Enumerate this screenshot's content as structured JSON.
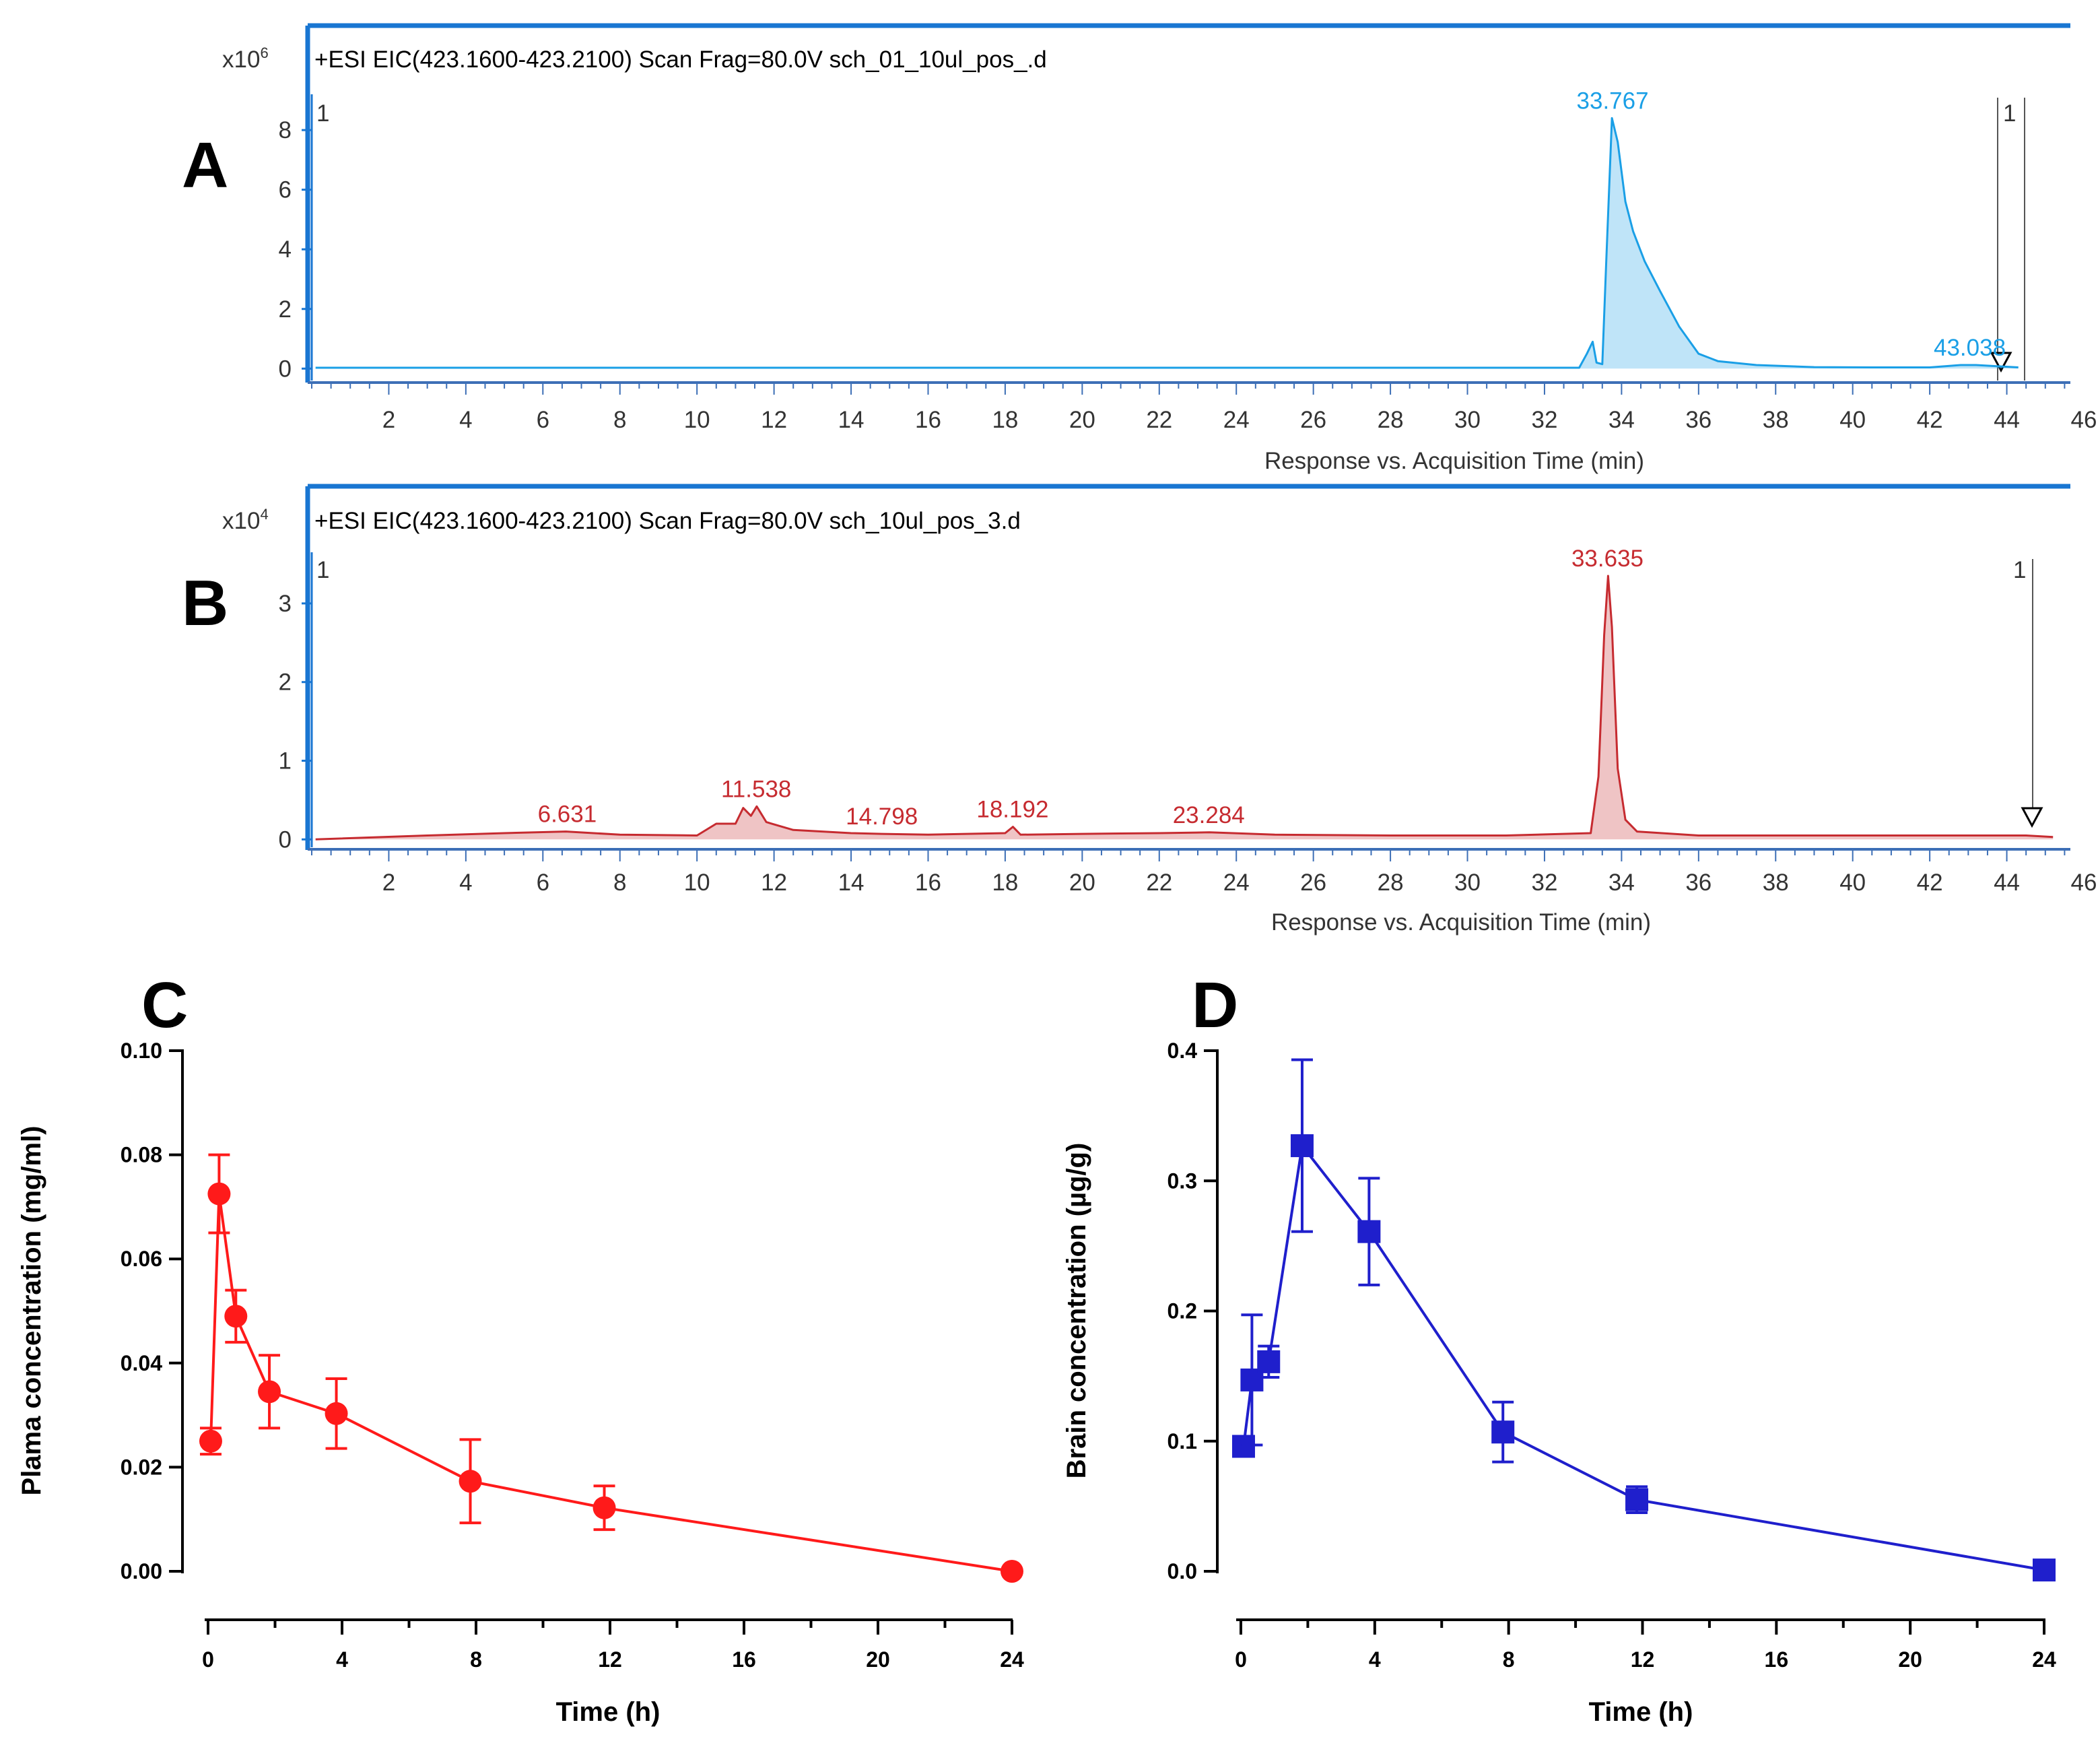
{
  "panels": {
    "A": {
      "label": "A"
    },
    "B": {
      "label": "B"
    },
    "C": {
      "label": "C"
    },
    "D": {
      "label": "D"
    }
  },
  "chart_data": [
    {
      "id": "A",
      "type": "line",
      "fill": true,
      "title": "+ESI EIC(423.1600-423.2100) Scan Frag=80.0V sch_01_10ul_pos_.d",
      "yscale_label": "x10",
      "yscale_exp": "6",
      "xlabel": "Response vs. Acquisition Time (min)",
      "xlim": [
        0,
        46
      ],
      "ylim": [
        -0.4,
        9.2
      ],
      "xticks": [
        2,
        4,
        6,
        8,
        10,
        12,
        14,
        16,
        18,
        20,
        22,
        24,
        26,
        28,
        30,
        32,
        34,
        36,
        38,
        40,
        42,
        44,
        46
      ],
      "yticks": [
        0,
        2,
        4,
        6,
        8
      ],
      "color": "#1a9fe6",
      "marker_text": "1",
      "series": [
        {
          "name": "EIC 423.16-423.21",
          "x": [
            0.1,
            32.9,
            33.1,
            33.25,
            33.35,
            33.5,
            33.6,
            33.75,
            33.9,
            34.1,
            34.3,
            34.6,
            35.0,
            35.5,
            36.0,
            36.5,
            37.5,
            39,
            40.5,
            42,
            42.8,
            43.2,
            44.3
          ],
          "y": [
            0.03,
            0.03,
            0.5,
            0.9,
            0.2,
            0.15,
            3.5,
            8.4,
            7.6,
            5.6,
            4.6,
            3.6,
            2.6,
            1.4,
            0.5,
            0.25,
            0.12,
            0.05,
            0.04,
            0.04,
            0.12,
            0.12,
            0.04
          ]
        }
      ],
      "peak_labels": [
        {
          "text": "33.767",
          "x": 33.767,
          "y": 8.4
        },
        {
          "text": "43.038",
          "x": 43.038,
          "y": 0.12
        }
      ]
    },
    {
      "id": "B",
      "type": "line",
      "fill": true,
      "title": "+ESI EIC(423.1600-423.2100) Scan Frag=80.0V sch_10ul_pos_3.d",
      "yscale_label": "x10",
      "yscale_exp": "4",
      "xlabel": "Response vs. Acquisition Time (min)",
      "xlim": [
        0,
        46
      ],
      "ylim": [
        -0.1,
        3.65
      ],
      "xticks": [
        2,
        4,
        6,
        8,
        10,
        12,
        14,
        16,
        18,
        20,
        22,
        24,
        26,
        28,
        30,
        32,
        34,
        36,
        38,
        40,
        42,
        44,
        46
      ],
      "yticks": [
        0,
        1,
        2,
        3
      ],
      "color": "#c62b30",
      "marker_text": "1",
      "series": [
        {
          "name": "EIC 423.16-423.21",
          "x": [
            0.1,
            3,
            5,
            6.6,
            8,
            10,
            10.5,
            11.0,
            11.2,
            11.4,
            11.55,
            11.8,
            12.5,
            14,
            14.8,
            16,
            18,
            18.2,
            18.4,
            20,
            22,
            23.3,
            25,
            28,
            31,
            33.2,
            33.4,
            33.55,
            33.65,
            33.75,
            33.9,
            34.1,
            34.4,
            36,
            40,
            44.5,
            45.2
          ],
          "y": [
            0,
            0.05,
            0.08,
            0.1,
            0.06,
            0.05,
            0.2,
            0.2,
            0.4,
            0.3,
            0.42,
            0.22,
            0.12,
            0.08,
            0.07,
            0.06,
            0.08,
            0.16,
            0.06,
            0.07,
            0.08,
            0.09,
            0.06,
            0.05,
            0.05,
            0.08,
            0.8,
            2.6,
            3.35,
            2.7,
            0.9,
            0.25,
            0.1,
            0.05,
            0.05,
            0.05,
            0.03
          ]
        }
      ],
      "peak_labels": [
        {
          "text": "6.631",
          "x": 6.631,
          "y": 0.1
        },
        {
          "text": "11.538",
          "x": 11.538,
          "y": 0.42
        },
        {
          "text": "14.798",
          "x": 14.798,
          "y": 0.07
        },
        {
          "text": "18.192",
          "x": 18.192,
          "y": 0.16
        },
        {
          "text": "23.284",
          "x": 23.284,
          "y": 0.09
        },
        {
          "text": "33.635",
          "x": 33.635,
          "y": 3.35
        }
      ]
    },
    {
      "id": "C",
      "type": "scatter",
      "title": "",
      "xlabel": "Time (h)",
      "ylabel": "Plama concentration (mg/ml)",
      "xlim": [
        0,
        24
      ],
      "ylim": [
        0,
        0.1
      ],
      "xticks": [
        0,
        4,
        8,
        12,
        16,
        20,
        24
      ],
      "yticks": [
        "0.00",
        "0.02",
        "0.04",
        "0.06",
        "0.08",
        "0.10"
      ],
      "color": "#ff1a1a",
      "marker": "circle",
      "series": [
        {
          "name": "Plasma",
          "x": [
            0.08,
            0.33,
            0.83,
            1.83,
            3.83,
            7.83,
            11.83,
            24
          ],
          "y": [
            0.025,
            0.0725,
            0.049,
            0.0345,
            0.0303,
            0.0173,
            0.0122,
            0.0
          ],
          "err": [
            0.0025,
            0.0075,
            0.005,
            0.007,
            0.0067,
            0.008,
            0.0042,
            0.0
          ]
        }
      ]
    },
    {
      "id": "D",
      "type": "scatter",
      "title": "",
      "xlabel": "Time (h)",
      "ylabel": "Brain concentration (µg/g)",
      "xlim": [
        0,
        24
      ],
      "ylim": [
        0,
        0.4
      ],
      "xticks": [
        0,
        4,
        8,
        12,
        16,
        20,
        24
      ],
      "yticks": [
        "0.0",
        "0.1",
        "0.2",
        "0.3",
        "0.4"
      ],
      "color": "#1f1fcc",
      "marker": "square",
      "series": [
        {
          "name": "Brain",
          "x": [
            0.08,
            0.33,
            0.83,
            1.83,
            3.83,
            7.83,
            11.83,
            24
          ],
          "y": [
            0.096,
            0.147,
            0.161,
            0.327,
            0.261,
            0.107,
            0.055,
            0.001
          ],
          "err": [
            0.004,
            0.05,
            0.012,
            0.066,
            0.041,
            0.023,
            0.01,
            0.0
          ]
        }
      ]
    }
  ]
}
